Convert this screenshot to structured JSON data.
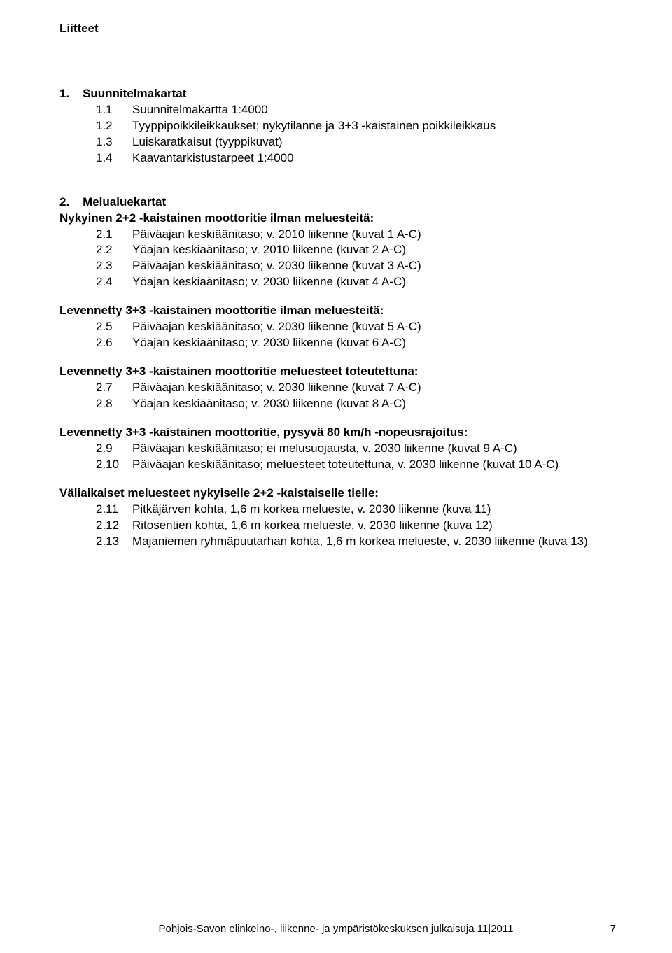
{
  "title": "Liitteet",
  "section1": {
    "head": "1.    Suunnitelmakartat",
    "items": [
      {
        "n": "1.1",
        "t": "Suunnitelmakartta 1:4000"
      },
      {
        "n": "1.2",
        "t": "Tyyppipoikkileikkaukset; nykytilanne ja 3+3 -kaistainen poikkileikkaus"
      },
      {
        "n": "1.3",
        "t": "Luiskaratkaisut (tyyppikuvat)"
      },
      {
        "n": "1.4",
        "t": "Kaavantarkistustarpeet 1:4000"
      }
    ]
  },
  "section2": {
    "head": "2.    Melualuekartat",
    "groups": [
      {
        "heading": "Nykyinen 2+2 -kaistainen moottoritie ilman meluesteitä:",
        "items": [
          {
            "n": "2.1",
            "t": "Päiväajan keskiäänitaso; v. 2010 liikenne (kuvat 1 A-C)"
          },
          {
            "n": "2.2",
            "t": "Yöajan keskiäänitaso; v. 2010 liikenne (kuvat 2 A-C)"
          },
          {
            "n": "2.3",
            "t": "Päiväajan keskiäänitaso; v. 2030 liikenne (kuvat 3 A-C)"
          },
          {
            "n": "2.4",
            "t": "Yöajan keskiäänitaso; v. 2030 liikenne (kuvat 4 A-C)"
          }
        ]
      },
      {
        "heading": "Levennetty 3+3 -kaistainen moottoritie ilman meluesteitä:",
        "items": [
          {
            "n": "2.5",
            "t": "Päiväajan keskiäänitaso; v. 2030 liikenne (kuvat 5 A-C)"
          },
          {
            "n": "2.6",
            "t": "Yöajan keskiäänitaso; v. 2030 liikenne (kuvat 6 A-C)"
          }
        ]
      },
      {
        "heading": "Levennetty 3+3 -kaistainen moottoritie meluesteet toteutettuna:",
        "items": [
          {
            "n": "2.7",
            "t": "Päiväajan keskiäänitaso; v. 2030 liikenne (kuvat 7 A-C)"
          },
          {
            "n": "2.8",
            "t": "Yöajan keskiäänitaso; v. 2030 liikenne (kuvat 8 A-C)"
          }
        ]
      },
      {
        "heading": "Levennetty 3+3 -kaistainen moottoritie, pysyvä 80 km/h -nopeusrajoitus:",
        "items": [
          {
            "n": "2.9",
            "t": "Päiväajan keskiäänitaso; ei melusuojausta, v. 2030 liikenne (kuvat 9 A-C)"
          },
          {
            "n": "2.10",
            "t": "Päiväajan keskiäänitaso; meluesteet toteutettuna, v. 2030 liikenne (kuvat 10 A-C)"
          }
        ]
      },
      {
        "heading": "Väliaikaiset meluesteet nykyiselle 2+2 -kaistaiselle tielle:",
        "items": [
          {
            "n": "2.11",
            "t": "Pitkäjärven kohta, 1,6 m korkea melueste, v. 2030 liikenne (kuva 11)"
          },
          {
            "n": "2.12",
            "t": "Ritosentien kohta, 1,6 m korkea melueste, v. 2030 liikenne (kuva 12)"
          },
          {
            "n": "2.13",
            "t": "Majaniemen ryhmäpuutarhan kohta, 1,6 m korkea melueste, v. 2030 liikenne (kuva 13)"
          }
        ]
      }
    ]
  },
  "footer": {
    "text": "Pohjois-Savon elinkeino-, liikenne- ja ympäristökeskuksen julkaisuja 11|2011",
    "page": "7"
  }
}
